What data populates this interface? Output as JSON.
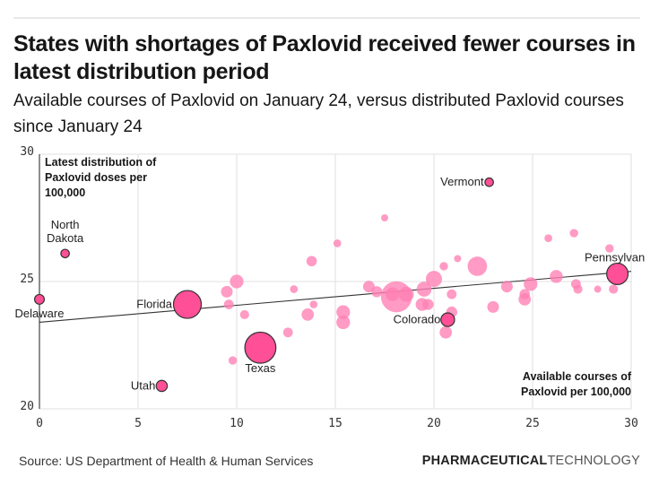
{
  "header": {
    "title": "States with shortages of Paxlovid received fewer courses in latest distribution period",
    "subtitle": "Available courses of Paxlovid on January 24, versus distributed Paxlovid courses since January 24"
  },
  "footer": {
    "source": "Source: US Department of Health & Human Services",
    "brand_bold": "PHARMACEUTICAL",
    "brand_light": "TECHNOLOGY"
  },
  "colors": {
    "bubble": "#ff7fb3",
    "highlight": "#ff4f96",
    "outline": "#333333",
    "grid": "#e6e6e6",
    "trend": "#333333"
  },
  "chart_data": {
    "type": "scatter",
    "title": "States with shortages of Paxlovid received fewer courses in latest distribution period",
    "subtitle": "Available courses of Paxlovid on January 24, versus distributed Paxlovid courses since January 24",
    "xlabel": "Available courses of Paxlovid per 100,000",
    "ylabel": "Latest distribution of Paxlovid doses per 100,000",
    "xlim": [
      0,
      30
    ],
    "ylim": [
      20,
      30
    ],
    "xticks": [
      "0",
      "5",
      "10",
      "15",
      "20",
      "25",
      "30"
    ],
    "yticks": [
      "20",
      "25",
      "30"
    ],
    "grid": true,
    "bubble_size_encoding": "relative size (population)",
    "trendline": {
      "x": [
        0,
        30
      ],
      "y": [
        23.4,
        25.4
      ]
    },
    "highlighted": [
      {
        "name": "Vermont",
        "x": 22.8,
        "y": 28.9,
        "size": 1.0
      },
      {
        "name": "North Dakota",
        "x": 1.3,
        "y": 26.1,
        "size": 1.0
      },
      {
        "name": "Delaware",
        "x": 0.0,
        "y": 24.3,
        "size": 1.2
      },
      {
        "name": "Florida",
        "x": 7.5,
        "y": 24.1,
        "size": 4.0
      },
      {
        "name": "Pennsylvania",
        "x": 29.3,
        "y": 25.3,
        "size": 3.0
      },
      {
        "name": "Colorado",
        "x": 20.7,
        "y": 23.5,
        "size": 1.8
      },
      {
        "name": "Texas",
        "x": 11.2,
        "y": 22.4,
        "size": 4.5
      },
      {
        "name": "Utah",
        "x": 6.2,
        "y": 20.9,
        "size": 1.4
      }
    ],
    "others": [
      {
        "x": 17.5,
        "y": 27.5,
        "size": 0.8
      },
      {
        "x": 15.1,
        "y": 26.5,
        "size": 0.9
      },
      {
        "x": 13.8,
        "y": 25.8,
        "size": 1.3
      },
      {
        "x": 10.0,
        "y": 25.0,
        "size": 1.8
      },
      {
        "x": 9.5,
        "y": 24.6,
        "size": 1.5
      },
      {
        "x": 9.6,
        "y": 24.1,
        "size": 1.2
      },
      {
        "x": 10.4,
        "y": 23.7,
        "size": 1.1
      },
      {
        "x": 12.9,
        "y": 24.7,
        "size": 0.9
      },
      {
        "x": 13.9,
        "y": 24.1,
        "size": 0.9
      },
      {
        "x": 13.6,
        "y": 23.7,
        "size": 1.6
      },
      {
        "x": 12.6,
        "y": 23.0,
        "size": 1.2
      },
      {
        "x": 15.4,
        "y": 23.8,
        "size": 1.8
      },
      {
        "x": 15.4,
        "y": 23.4,
        "size": 1.8
      },
      {
        "x": 9.8,
        "y": 21.9,
        "size": 1.0
      },
      {
        "x": 16.7,
        "y": 24.8,
        "size": 1.5
      },
      {
        "x": 17.1,
        "y": 24.6,
        "size": 1.4
      },
      {
        "x": 18.1,
        "y": 24.4,
        "size": 4.5
      },
      {
        "x": 17.9,
        "y": 24.5,
        "size": 1.8
      },
      {
        "x": 18.6,
        "y": 24.5,
        "size": 2.0
      },
      {
        "x": 19.5,
        "y": 24.7,
        "size": 2.0
      },
      {
        "x": 19.4,
        "y": 24.1,
        "size": 1.7
      },
      {
        "x": 19.7,
        "y": 24.1,
        "size": 1.4
      },
      {
        "x": 20.0,
        "y": 25.1,
        "size": 2.2
      },
      {
        "x": 20.5,
        "y": 25.6,
        "size": 1.0
      },
      {
        "x": 20.9,
        "y": 24.5,
        "size": 1.2
      },
      {
        "x": 20.9,
        "y": 23.8,
        "size": 1.4
      },
      {
        "x": 20.6,
        "y": 23.0,
        "size": 1.6
      },
      {
        "x": 22.2,
        "y": 25.6,
        "size": 2.7
      },
      {
        "x": 23.0,
        "y": 24.0,
        "size": 1.5
      },
      {
        "x": 23.7,
        "y": 24.8,
        "size": 1.5
      },
      {
        "x": 24.6,
        "y": 24.5,
        "size": 1.3
      },
      {
        "x": 24.6,
        "y": 24.3,
        "size": 1.6
      },
      {
        "x": 24.9,
        "y": 24.9,
        "size": 1.8
      },
      {
        "x": 25.8,
        "y": 26.7,
        "size": 0.9
      },
      {
        "x": 26.2,
        "y": 25.2,
        "size": 1.7
      },
      {
        "x": 27.1,
        "y": 26.9,
        "size": 1.0
      },
      {
        "x": 27.2,
        "y": 24.9,
        "size": 1.2
      },
      {
        "x": 27.3,
        "y": 24.7,
        "size": 1.1
      },
      {
        "x": 28.3,
        "y": 24.7,
        "size": 0.8
      },
      {
        "x": 28.9,
        "y": 26.3,
        "size": 1.0
      },
      {
        "x": 29.1,
        "y": 24.7,
        "size": 1.1
      },
      {
        "x": 21.2,
        "y": 25.9,
        "size": 0.8
      }
    ],
    "labels": {
      "Vermont": "Vermont",
      "North Dakota": [
        "North",
        "Dakota"
      ],
      "Delaware": "Delaware",
      "Florida": "Florida",
      "Pennsylvania": "Pennsylvan",
      "Colorado": "Colorado",
      "Texas": "Texas",
      "Utah": "Utah"
    },
    "ylabel_lines": [
      "Latest distribution of",
      "Paxlovid doses per",
      "100,000"
    ],
    "xlabel_lines": [
      "Available courses of",
      "Paxlovid per 100,000"
    ]
  }
}
